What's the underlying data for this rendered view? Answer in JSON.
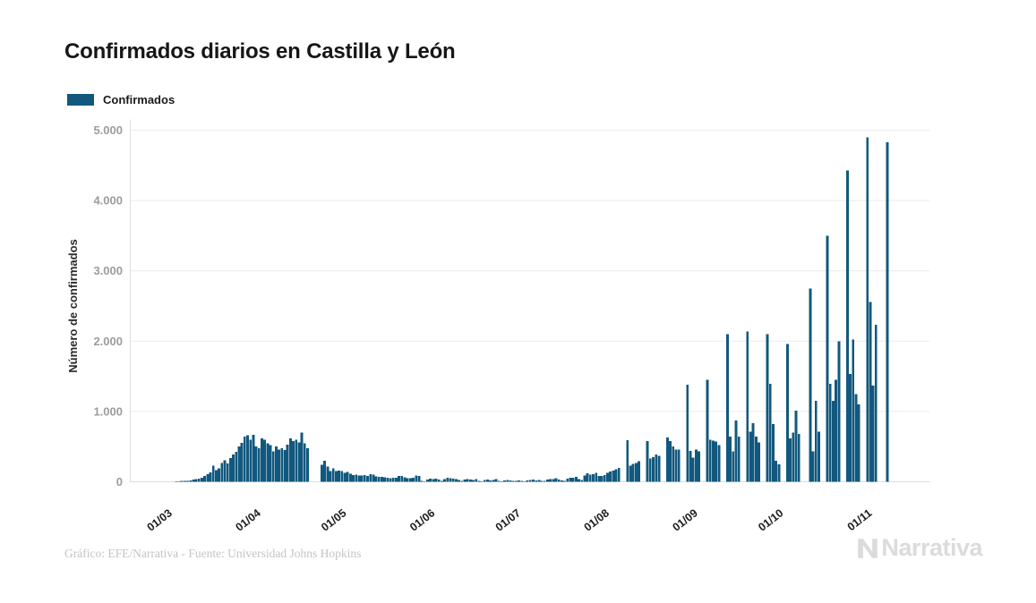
{
  "chart_data": {
    "type": "bar",
    "title": "Confirmados diarios en Castilla y León",
    "series_name": "Confirmados",
    "xlabel": "",
    "ylabel": "Número de confirmados",
    "ylim": [
      0,
      5000
    ],
    "grid": "horizontal",
    "legend_position": "top-left",
    "bar_color": "#12587e",
    "y_ticks": [
      {
        "value": 0,
        "label": "0"
      },
      {
        "value": 1000,
        "label": "1.000"
      },
      {
        "value": 2000,
        "label": "2.000"
      },
      {
        "value": 3000,
        "label": "3.000"
      },
      {
        "value": 4000,
        "label": "4.000"
      },
      {
        "value": 5000,
        "label": "5.000"
      }
    ],
    "x_start_date": "2020-03-01",
    "x_ticks": [
      {
        "label": "01/03",
        "day_index": 0
      },
      {
        "label": "01/04",
        "day_index": 31
      },
      {
        "label": "01/05",
        "day_index": 61
      },
      {
        "label": "01/06",
        "day_index": 92
      },
      {
        "label": "01/07",
        "day_index": 122
      },
      {
        "label": "01/08",
        "day_index": 153
      },
      {
        "label": "01/09",
        "day_index": 184
      },
      {
        "label": "01/10",
        "day_index": 214
      },
      {
        "label": "01/11",
        "day_index": 245
      }
    ],
    "values": [
      0,
      1,
      2,
      3,
      6,
      8,
      10,
      12,
      15,
      22,
      30,
      38,
      45,
      60,
      85,
      110,
      135,
      230,
      165,
      190,
      270,
      305,
      260,
      340,
      390,
      425,
      500,
      555,
      640,
      660,
      600,
      670,
      505,
      480,
      620,
      600,
      550,
      520,
      430,
      505,
      460,
      480,
      450,
      530,
      620,
      580,
      600,
      560,
      700,
      545,
      480,
      0,
      0,
      0,
      0,
      240,
      300,
      215,
      150,
      190,
      155,
      160,
      150,
      130,
      140,
      115,
      95,
      100,
      88,
      92,
      96,
      85,
      110,
      100,
      78,
      68,
      72,
      62,
      55,
      52,
      60,
      56,
      85,
      80,
      62,
      52,
      48,
      55,
      90,
      85,
      15,
      8,
      30,
      42,
      35,
      45,
      30,
      12,
      40,
      55,
      50,
      45,
      35,
      25,
      12,
      30,
      36,
      30,
      25,
      40,
      12,
      6,
      25,
      30,
      20,
      25,
      35,
      12,
      6,
      20,
      25,
      18,
      15,
      10,
      20,
      12,
      6,
      20,
      25,
      30,
      22,
      25,
      15,
      10,
      30,
      40,
      35,
      50,
      30,
      20,
      12,
      45,
      60,
      55,
      70,
      40,
      25,
      90,
      120,
      100,
      110,
      130,
      85,
      80,
      95,
      130,
      145,
      160,
      180,
      200,
      0,
      0,
      590,
      230,
      255,
      270,
      290,
      0,
      0,
      580,
      330,
      350,
      390,
      370,
      0,
      0,
      630,
      580,
      500,
      455,
      460,
      0,
      0,
      1380,
      440,
      345,
      455,
      430,
      0,
      0,
      1450,
      600,
      585,
      575,
      520,
      0,
      0,
      2100,
      640,
      430,
      870,
      640,
      0,
      0,
      2140,
      710,
      835,
      640,
      560,
      0,
      0,
      2100,
      1390,
      820,
      300,
      250,
      0,
      0,
      1960,
      620,
      700,
      1010,
      680,
      0,
      0,
      0,
      2750,
      430,
      1150,
      710,
      0,
      0,
      3500,
      1390,
      1150,
      1450,
      2000,
      0,
      0,
      4430,
      1530,
      2020,
      1250,
      1100,
      0,
      0,
      4900,
      2560,
      1370,
      2230,
      0,
      0,
      0,
      4830
    ]
  },
  "footer": {
    "credit": "Gráfico: EFE/Narrativa - Fuente: Universidad Johns Hopkins",
    "logo_text": "Narrativa"
  }
}
